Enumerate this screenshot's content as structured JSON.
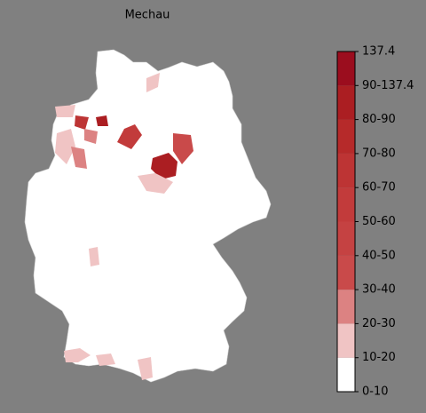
{
  "title": "Mechau",
  "legend": {
    "labels": [
      "0-10",
      "10-20",
      "20-30",
      "30-40",
      "40-50",
      "50-60",
      "60-70",
      "70-80",
      "80-90",
      "90-137.4",
      "137.4"
    ],
    "colors": [
      "#ffffff",
      "#f0c4c4",
      "#dc8282",
      "#c94a4a",
      "#c54242",
      "#c23b3b",
      "#bd3434",
      "#b62a2a",
      "#ab1e22",
      "#9b0d1e"
    ]
  }
}
